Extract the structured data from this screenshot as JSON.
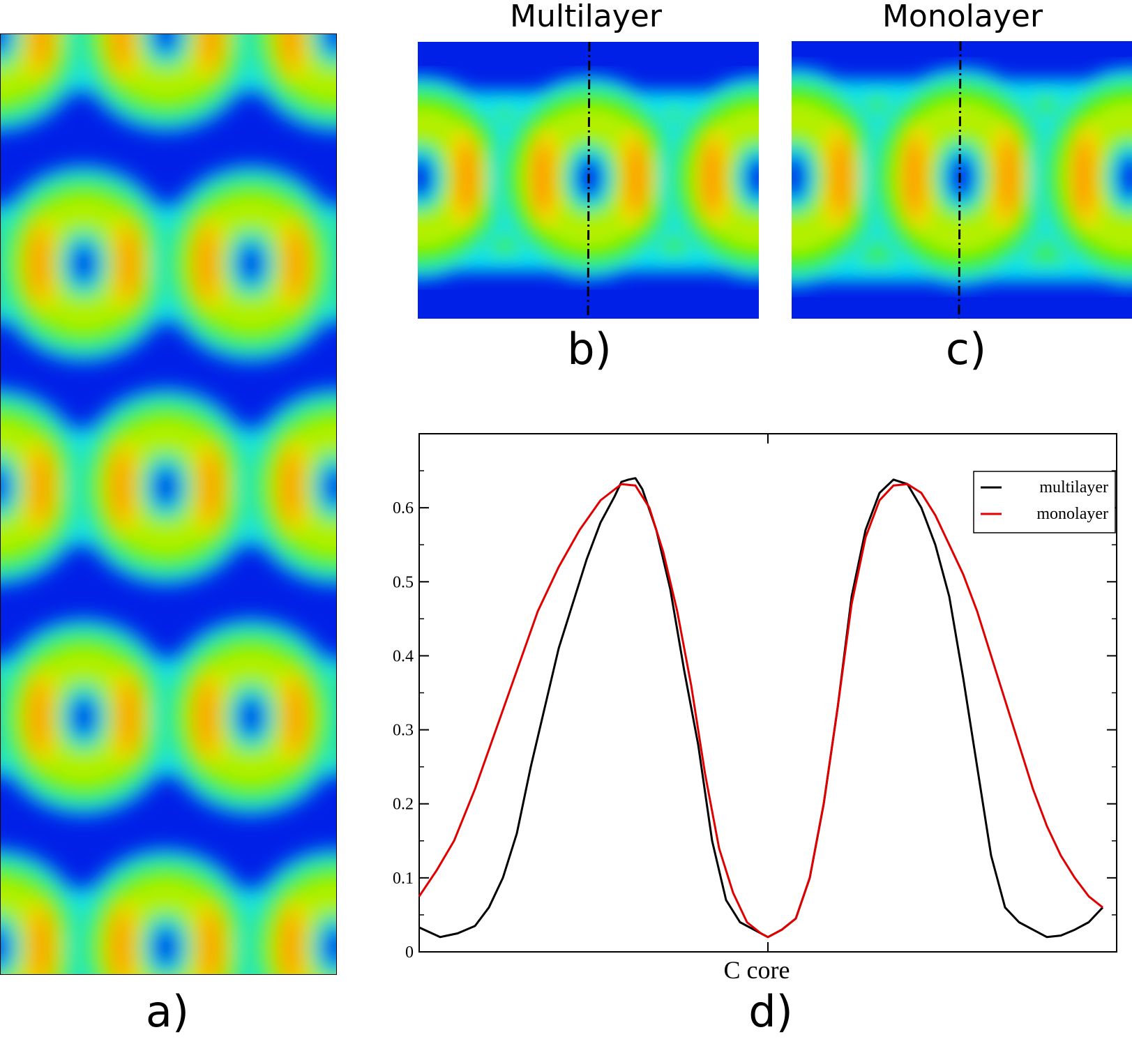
{
  "panels": {
    "a": {
      "caption": "a)"
    },
    "b": {
      "title": "Multilayer",
      "caption": "b)"
    },
    "c": {
      "title": "Monolayer",
      "caption": "c)"
    },
    "d": {
      "caption": "d)"
    }
  },
  "colors": {
    "blue": "#0020e8",
    "cyan": "#00e0f0",
    "green": "#3cf000",
    "lime": "#b4f000",
    "yellow": "#f0d800",
    "orange": "#ff9c00",
    "multilayer": "#000000",
    "monolayer": "#e00000"
  },
  "chart_data": {
    "type": "line",
    "title": "",
    "xlabel": "C core",
    "ylabel": "",
    "xlim": [
      0,
      1
    ],
    "ylim": [
      0,
      0.7
    ],
    "yticks": [
      0,
      0.1,
      0.2,
      0.3,
      0.4,
      0.5,
      0.6
    ],
    "ytick_labels": [
      "0",
      "0.1",
      "0.2",
      "0.3",
      "0.4",
      "0.5",
      "0.6"
    ],
    "xticks": [
      0.5
    ],
    "legend": {
      "position": "top-right"
    },
    "series": [
      {
        "name": "multilayer",
        "color": "#000000",
        "points": [
          [
            0,
            0.033
          ],
          [
            0.03,
            0.02
          ],
          [
            0.055,
            0.025
          ],
          [
            0.08,
            0.035
          ],
          [
            0.1,
            0.06
          ],
          [
            0.12,
            0.1
          ],
          [
            0.14,
            0.16
          ],
          [
            0.16,
            0.25
          ],
          [
            0.18,
            0.33
          ],
          [
            0.2,
            0.41
          ],
          [
            0.22,
            0.47
          ],
          [
            0.24,
            0.53
          ],
          [
            0.26,
            0.58
          ],
          [
            0.28,
            0.615
          ],
          [
            0.29,
            0.635
          ],
          [
            0.3,
            0.638
          ],
          [
            0.31,
            0.64
          ],
          [
            0.32,
            0.625
          ],
          [
            0.34,
            0.57
          ],
          [
            0.36,
            0.49
          ],
          [
            0.38,
            0.38
          ],
          [
            0.4,
            0.28
          ],
          [
            0.42,
            0.15
          ],
          [
            0.44,
            0.07
          ],
          [
            0.46,
            0.04
          ],
          [
            0.48,
            0.03
          ],
          [
            0.5,
            0.02
          ],
          [
            0.52,
            0.03
          ],
          [
            0.54,
            0.045
          ],
          [
            0.56,
            0.1
          ],
          [
            0.58,
            0.2
          ],
          [
            0.6,
            0.33
          ],
          [
            0.62,
            0.48
          ],
          [
            0.64,
            0.57
          ],
          [
            0.66,
            0.62
          ],
          [
            0.68,
            0.638
          ],
          [
            0.7,
            0.632
          ],
          [
            0.72,
            0.6
          ],
          [
            0.74,
            0.55
          ],
          [
            0.76,
            0.48
          ],
          [
            0.78,
            0.37
          ],
          [
            0.8,
            0.25
          ],
          [
            0.82,
            0.13
          ],
          [
            0.84,
            0.06
          ],
          [
            0.86,
            0.04
          ],
          [
            0.88,
            0.03
          ],
          [
            0.9,
            0.02
          ],
          [
            0.92,
            0.022
          ],
          [
            0.94,
            0.03
          ],
          [
            0.96,
            0.04
          ],
          [
            0.97,
            0.05
          ],
          [
            0.98,
            0.06
          ]
        ]
      },
      {
        "name": "monolayer",
        "color": "#e00000",
        "points": [
          [
            0,
            0.075
          ],
          [
            0.025,
            0.11
          ],
          [
            0.05,
            0.15
          ],
          [
            0.08,
            0.22
          ],
          [
            0.11,
            0.3
          ],
          [
            0.14,
            0.38
          ],
          [
            0.17,
            0.46
          ],
          [
            0.2,
            0.52
          ],
          [
            0.23,
            0.57
          ],
          [
            0.26,
            0.61
          ],
          [
            0.29,
            0.632
          ],
          [
            0.31,
            0.63
          ],
          [
            0.33,
            0.6
          ],
          [
            0.35,
            0.54
          ],
          [
            0.37,
            0.46
          ],
          [
            0.39,
            0.36
          ],
          [
            0.41,
            0.24
          ],
          [
            0.43,
            0.14
          ],
          [
            0.45,
            0.08
          ],
          [
            0.47,
            0.04
          ],
          [
            0.49,
            0.025
          ],
          [
            0.5,
            0.02
          ],
          [
            0.52,
            0.03
          ],
          [
            0.54,
            0.045
          ],
          [
            0.56,
            0.1
          ],
          [
            0.58,
            0.2
          ],
          [
            0.6,
            0.33
          ],
          [
            0.62,
            0.47
          ],
          [
            0.64,
            0.56
          ],
          [
            0.66,
            0.61
          ],
          [
            0.68,
            0.63
          ],
          [
            0.7,
            0.632
          ],
          [
            0.72,
            0.62
          ],
          [
            0.74,
            0.59
          ],
          [
            0.76,
            0.55
          ],
          [
            0.78,
            0.51
          ],
          [
            0.8,
            0.46
          ],
          [
            0.82,
            0.4
          ],
          [
            0.84,
            0.34
          ],
          [
            0.86,
            0.28
          ],
          [
            0.88,
            0.22
          ],
          [
            0.9,
            0.17
          ],
          [
            0.92,
            0.13
          ],
          [
            0.94,
            0.1
          ],
          [
            0.96,
            0.075
          ],
          [
            0.98,
            0.06
          ]
        ]
      }
    ]
  }
}
